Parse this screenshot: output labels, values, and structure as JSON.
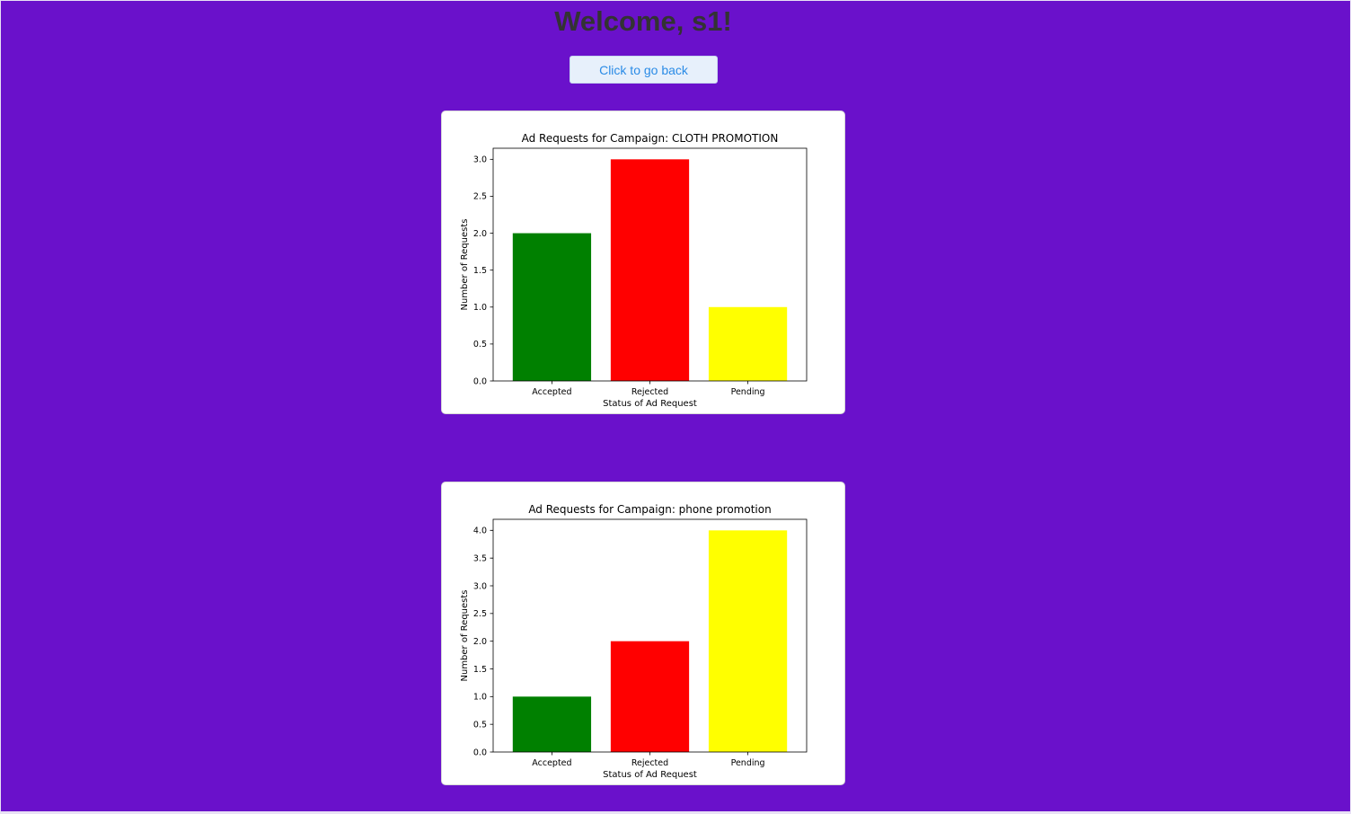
{
  "header": {
    "title": "Welcome, s1!"
  },
  "back_button": {
    "label": "Click to go back"
  },
  "chart_data": [
    {
      "type": "bar",
      "title": "Ad Requests for Campaign: CLOTH PROMOTION",
      "xlabel": "Status of Ad Request",
      "ylabel": "Number of Requests",
      "categories": [
        "Accepted",
        "Rejected",
        "Pending"
      ],
      "values": [
        2,
        3,
        1
      ],
      "colors": [
        "#008000",
        "#ff0000",
        "#ffff00"
      ],
      "ylim": [
        0,
        3.15
      ],
      "yticks": [
        0.0,
        0.5,
        1.0,
        1.5,
        2.0,
        2.5,
        3.0
      ],
      "ytick_labels": [
        "0.0",
        "0.5",
        "1.0",
        "1.5",
        "2.0",
        "2.5",
        "3.0"
      ],
      "grid": false,
      "legend": "none"
    },
    {
      "type": "bar",
      "title": "Ad Requests for Campaign: phone promotion",
      "xlabel": "Status of Ad Request",
      "ylabel": "Number of Requests",
      "categories": [
        "Accepted",
        "Rejected",
        "Pending"
      ],
      "values": [
        1,
        2,
        4
      ],
      "colors": [
        "#008000",
        "#ff0000",
        "#ffff00"
      ],
      "ylim": [
        0,
        4.2
      ],
      "yticks": [
        0.0,
        0.5,
        1.0,
        1.5,
        2.0,
        2.5,
        3.0,
        3.5,
        4.0
      ],
      "ytick_labels": [
        "0.0",
        "0.5",
        "1.0",
        "1.5",
        "2.0",
        "2.5",
        "3.0",
        "3.5",
        "4.0"
      ],
      "grid": false,
      "legend": "none"
    }
  ]
}
